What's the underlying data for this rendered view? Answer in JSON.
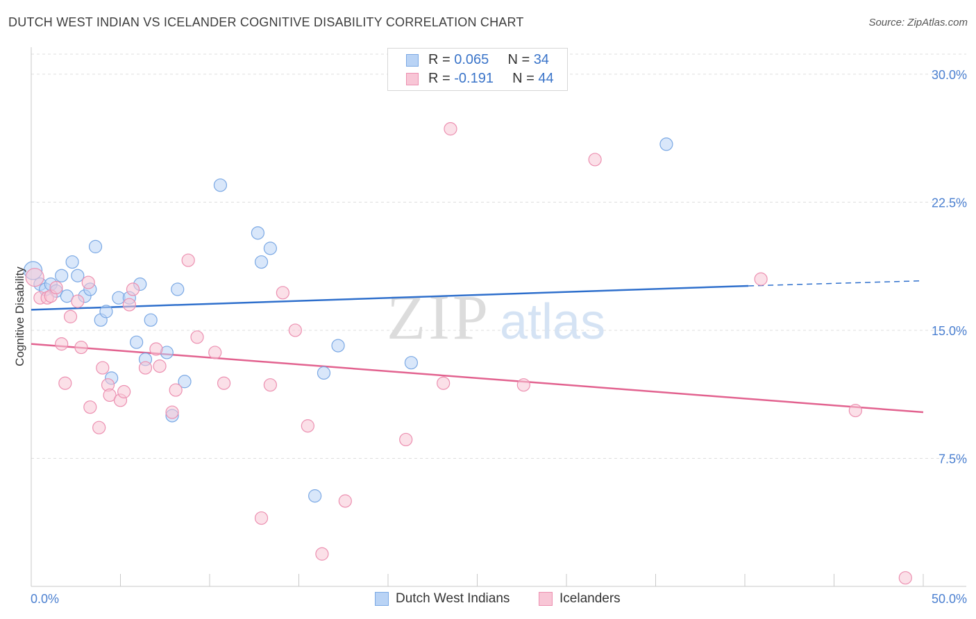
{
  "header": {
    "title": "DUTCH WEST INDIAN VS ICELANDER COGNITIVE DISABILITY CORRELATION CHART",
    "source": "Source: ZipAtlas.com"
  },
  "watermark": {
    "zip": "ZIP",
    "atlas": "atlas"
  },
  "legend": {
    "rows": [
      {
        "r_label": "R = ",
        "r_value": "0.065",
        "n_label": "N = ",
        "n_value": "34"
      },
      {
        "r_label": "R = ",
        "r_value": "-0.191",
        "n_label": "N = ",
        "n_value": "44"
      }
    ]
  },
  "chart_data": {
    "type": "scatter",
    "ylabel": "Cognitive Disability",
    "xlim": [
      0,
      50
    ],
    "ylim": [
      0,
      31.5
    ],
    "x_tick_labels": [
      "0.0%",
      "50.0%"
    ],
    "y_ticks": [
      7.5,
      15.0,
      22.5,
      30.0
    ],
    "y_tick_labels": [
      "7.5%",
      "15.0%",
      "22.5%",
      "30.0%"
    ],
    "grid": true,
    "colors": {
      "blue_fill": "#b9d3f5",
      "blue_stroke": "#7aa8e4",
      "blue_line": "#2e6fcc",
      "pink_fill": "#f8c6d6",
      "pink_stroke": "#ec8fb0",
      "pink_line": "#e2628f"
    },
    "series": [
      {
        "name": "Dutch West Indians",
        "color": "#7aa8e4",
        "points": [
          [
            0.1,
            18.5
          ],
          [
            0.5,
            17.7
          ],
          [
            0.8,
            17.4
          ],
          [
            1.1,
            17.7
          ],
          [
            1.4,
            17.3
          ],
          [
            1.7,
            18.2
          ],
          [
            2.0,
            17.0
          ],
          [
            2.3,
            19.0
          ],
          [
            2.6,
            18.2
          ],
          [
            3.0,
            17.0
          ],
          [
            3.3,
            17.4
          ],
          [
            3.6,
            19.9
          ],
          [
            3.9,
            15.6
          ],
          [
            4.2,
            16.1
          ],
          [
            4.5,
            12.2
          ],
          [
            4.9,
            16.9
          ],
          [
            5.5,
            16.9
          ],
          [
            5.9,
            14.3
          ],
          [
            6.1,
            17.7
          ],
          [
            6.4,
            13.3
          ],
          [
            6.7,
            15.6
          ],
          [
            7.6,
            13.7
          ],
          [
            7.9,
            10.0
          ],
          [
            8.2,
            17.4
          ],
          [
            8.6,
            12.0
          ],
          [
            10.6,
            23.5
          ],
          [
            12.7,
            20.7
          ],
          [
            12.9,
            19.0
          ],
          [
            13.4,
            19.8
          ],
          [
            15.9,
            5.3
          ],
          [
            16.4,
            12.5
          ],
          [
            17.2,
            14.1
          ],
          [
            21.3,
            13.1
          ],
          [
            35.6,
            25.9
          ]
        ],
        "trend": {
          "x": [
            0,
            40.2
          ],
          "y": [
            16.2,
            17.6
          ],
          "dashed_to": [
            50,
            17.9
          ]
        }
      },
      {
        "name": "Icelanders",
        "color": "#ec8fb0",
        "points": [
          [
            0.2,
            18.1
          ],
          [
            0.5,
            16.9
          ],
          [
            0.9,
            16.9
          ],
          [
            1.1,
            17.0
          ],
          [
            1.4,
            17.5
          ],
          [
            1.7,
            14.2
          ],
          [
            1.9,
            11.9
          ],
          [
            2.2,
            15.8
          ],
          [
            2.6,
            16.7
          ],
          [
            2.8,
            14.0
          ],
          [
            3.2,
            17.8
          ],
          [
            3.3,
            10.5
          ],
          [
            3.8,
            9.3
          ],
          [
            4.0,
            12.8
          ],
          [
            4.3,
            11.8
          ],
          [
            4.4,
            11.2
          ],
          [
            5.0,
            10.9
          ],
          [
            5.2,
            11.4
          ],
          [
            5.5,
            16.5
          ],
          [
            5.7,
            17.4
          ],
          [
            6.4,
            12.8
          ],
          [
            7.0,
            13.9
          ],
          [
            7.2,
            12.9
          ],
          [
            7.9,
            10.2
          ],
          [
            8.1,
            11.5
          ],
          [
            8.8,
            19.1
          ],
          [
            9.3,
            14.6
          ],
          [
            10.3,
            13.7
          ],
          [
            10.8,
            11.9
          ],
          [
            12.9,
            4.0
          ],
          [
            13.4,
            11.8
          ],
          [
            14.1,
            17.2
          ],
          [
            14.8,
            15.0
          ],
          [
            15.5,
            9.4
          ],
          [
            16.3,
            1.9
          ],
          [
            17.6,
            5.0
          ],
          [
            21.0,
            8.6
          ],
          [
            23.1,
            11.9
          ],
          [
            23.5,
            26.8
          ],
          [
            27.6,
            11.8
          ],
          [
            31.6,
            25.0
          ],
          [
            40.9,
            18.0
          ],
          [
            46.2,
            10.3
          ],
          [
            49.0,
            0.5
          ]
        ],
        "trend": {
          "x": [
            0,
            50
          ],
          "y": [
            14.2,
            10.2
          ]
        }
      }
    ]
  }
}
